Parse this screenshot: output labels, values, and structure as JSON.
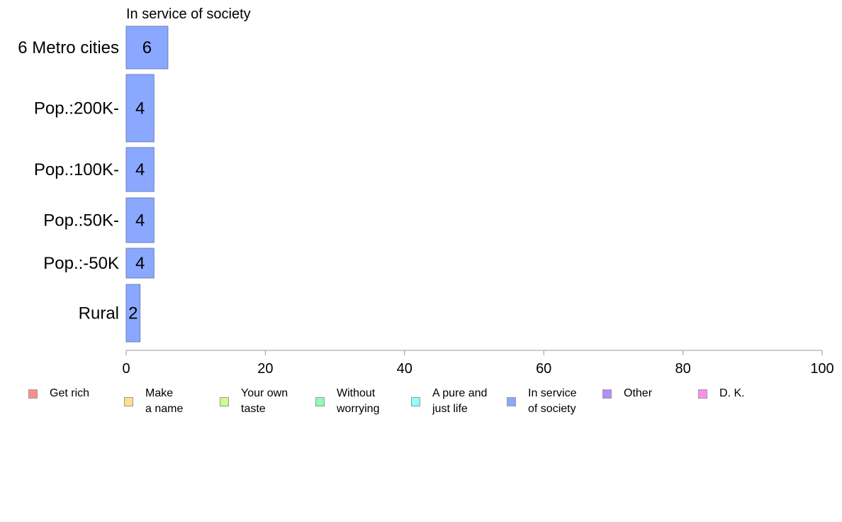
{
  "chart_data": {
    "type": "bar",
    "orientation": "horizontal",
    "title": "In service of society",
    "categories": [
      "6 Metro cities",
      "Pop.:200K-",
      "Pop.:100K-",
      "Pop.:50K-",
      "Pop.:-50K",
      "Rural"
    ],
    "values": [
      6,
      4,
      4,
      4,
      4,
      2
    ],
    "value_labels": [
      "6",
      "4",
      "4",
      "4",
      "4",
      "2"
    ],
    "xlim": [
      0,
      100
    ],
    "xticks": [
      "0",
      "20",
      "40",
      "60",
      "80",
      "100"
    ],
    "grid": false,
    "bar_color": "#8aa8ff",
    "bar_edge_color": "#6f7fb8",
    "legend_position": "bottom",
    "legend": [
      {
        "label": "Get rich",
        "color": "#ff8c8c"
      },
      {
        "label": "Make\na name",
        "color": "#ffe08a"
      },
      {
        "label": "Your own\ntaste",
        "color": "#ccff8c"
      },
      {
        "label": "Without\nworrying",
        "color": "#8cffb4"
      },
      {
        "label": "A pure and\njust life",
        "color": "#8cffff"
      },
      {
        "label": "In service\nof society",
        "color": "#8aa8ff"
      },
      {
        "label": "Other",
        "color": "#b48cff"
      },
      {
        "label": "D. K.",
        "color": "#ff8cf0"
      }
    ]
  }
}
